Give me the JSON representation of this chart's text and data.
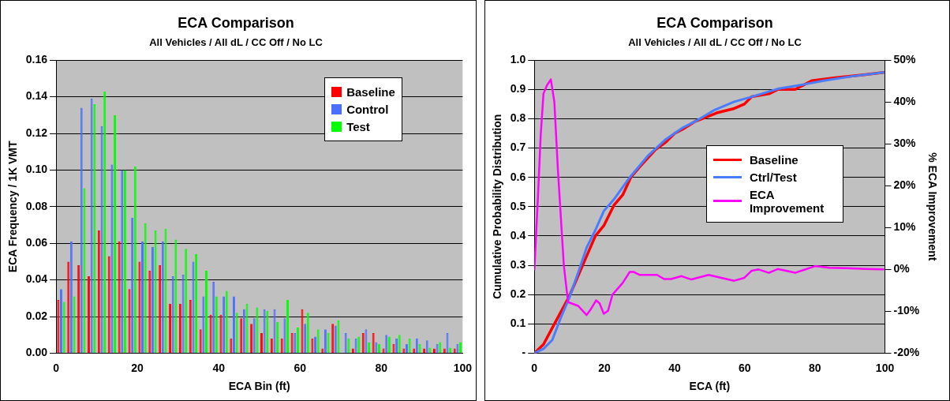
{
  "chart_data": [
    {
      "type": "bar",
      "title": "ECA Comparison",
      "subtitle": "All Vehicles / All dL / CC Off / No LC",
      "xlabel": "ECA Bin (ft)",
      "ylabel": "ECA Frequency / 1K VMT",
      "x": [
        1.25,
        3.75,
        6.25,
        8.75,
        11.25,
        13.75,
        16.25,
        18.75,
        21.25,
        23.75,
        26.25,
        28.75,
        31.25,
        33.75,
        36.25,
        38.75,
        41.25,
        43.75,
        46.25,
        48.75,
        51.25,
        53.75,
        56.25,
        58.75,
        61.25,
        63.75,
        66.25,
        68.75,
        71.25,
        73.75,
        76.25,
        78.75,
        81.25,
        83.75,
        86.25,
        88.75,
        91.25,
        93.75,
        96.25,
        98.75
      ],
      "series": [
        {
          "name": "Baseline",
          "color": "#ff0000",
          "values": [
            0.029,
            0.05,
            0.048,
            0.042,
            0.067,
            0.053,
            0.061,
            0.035,
            0.05,
            0.045,
            0.048,
            0.027,
            0.027,
            0.029,
            0.013,
            0.021,
            0.021,
            0.008,
            0.019,
            0.016,
            0.011,
            0.008,
            0.008,
            0.011,
            0.024,
            0.008,
            0.0025,
            0.016,
            0,
            0.0025,
            0.011,
            0.011,
            0.0025,
            0.005,
            0.0025,
            0.0025,
            0.0025,
            0.0025,
            0.0025,
            0.0025
          ]
        },
        {
          "name": "Control",
          "color": "#4a6fff",
          "values": [
            0.035,
            0.061,
            0.134,
            0.139,
            0.124,
            0.103,
            0.1,
            0.074,
            0.061,
            0.058,
            0.061,
            0.042,
            0.043,
            0.05,
            0.031,
            0.039,
            0.031,
            0.031,
            0.024,
            0.019,
            0.024,
            0.024,
            0.019,
            0.011,
            0.016,
            0.009,
            0.013,
            0.015,
            0.011,
            0.008,
            0.013,
            0.006,
            0.01,
            0.008,
            0.005,
            0.008,
            0.007,
            0.005,
            0.011,
            0.005
          ]
        },
        {
          "name": "Test",
          "color": "#00ff00",
          "values": [
            0.028,
            0.031,
            0.09,
            0.136,
            0.143,
            0.13,
            0.1,
            0.102,
            0.071,
            0.067,
            0.068,
            0.062,
            0.057,
            0.054,
            0.045,
            0.031,
            0.034,
            0.022,
            0.027,
            0.025,
            0.023,
            0.017,
            0.029,
            0.014,
            0.022,
            0.013,
            0.011,
            0.018,
            0.008,
            0.009,
            0.006,
            0.005,
            0.009,
            0.01,
            0.008,
            0.005,
            0.003,
            0.006,
            0.003,
            0.006
          ]
        }
      ],
      "xlim": [
        0,
        100
      ],
      "xticks": [
        0,
        20,
        40,
        60,
        80,
        100
      ],
      "ylim": [
        0,
        0.16
      ],
      "yticks": [
        {
          "value": 0,
          "label": "0.00"
        },
        0.02,
        0.04,
        0.06,
        0.08,
        {
          "value": 0.1,
          "label": "0.10"
        },
        0.12,
        0.14,
        0.16
      ],
      "grid": "y",
      "legend": "top right"
    },
    {
      "type": "line",
      "title": "ECA Comparison",
      "subtitle": "All Vehicles / All dL / CC Off / No LC",
      "xlabel": "ECA (ft)",
      "ylabel": "Cumulative Probability Distribution",
      "y2label": "% ECA Improvement",
      "series": [
        {
          "name": "Baseline",
          "color": "#ff0000",
          "x": [
            0,
            2.6,
            5.5,
            10,
            14.5,
            17.4,
            19.8,
            22.7,
            25.2,
            27.5,
            30,
            34.6,
            37.5,
            40,
            42.4,
            45.7,
            48.9,
            52,
            57,
            59.9,
            62,
            66.9,
            69.4,
            74.4,
            79.1,
            85.8,
            94,
            99.6
          ],
          "values": [
            0,
            0.03,
            0.095,
            0.195,
            0.32,
            0.4,
            0.435,
            0.505,
            0.54,
            0.6,
            0.635,
            0.695,
            0.72,
            0.75,
            0.765,
            0.79,
            0.805,
            0.82,
            0.835,
            0.85,
            0.875,
            0.885,
            0.9,
            0.9,
            0.93,
            0.94,
            0.95,
            0.958
          ]
        },
        {
          "name": "Ctrl/Test",
          "color": "#4a7cff",
          "x": [
            0,
            2.6,
            5.1,
            7.5,
            10,
            12.5,
            14.9,
            17.4,
            19.8,
            22.7,
            27.2,
            32.5,
            37.5,
            42.4,
            46.5,
            51.4,
            57,
            62,
            69.4,
            75.9,
            82.5,
            90.7,
            99.6
          ],
          "values": [
            0,
            0.015,
            0.045,
            0.12,
            0.19,
            0.275,
            0.36,
            0.42,
            0.485,
            0.525,
            0.6,
            0.675,
            0.73,
            0.77,
            0.795,
            0.83,
            0.858,
            0.875,
            0.902,
            0.915,
            0.93,
            0.945,
            0.958
          ]
        },
        {
          "name": "ECA Improvement",
          "color": "#ff00ff",
          "axis": "y2",
          "x": [
            0,
            1,
            1.8,
            2.6,
            3.6,
            4.7,
            5.7,
            6.7,
            8.4,
            9.6,
            12.5,
            14.9,
            16.1,
            17.6,
            18.6,
            19.8,
            21,
            22.3,
            25.2,
            27.2,
            28.4,
            30,
            35,
            37,
            39,
            42,
            44.8,
            49.7,
            57,
            59.9,
            62,
            64,
            66.9,
            69.4,
            74.4,
            80.1,
            84.2,
            89,
            94.8,
            99.6
          ],
          "values": [
            0,
            17,
            32,
            42,
            44,
            45.4,
            40,
            24,
            1,
            -7.8,
            -8.7,
            -10.9,
            -9.5,
            -7.4,
            -8.1,
            -10.6,
            -9.9,
            -6,
            -3.2,
            -0.6,
            -0.6,
            -1.3,
            -1.3,
            -2.3,
            -2.3,
            -1.6,
            -2.4,
            -1.3,
            -2.7,
            -2,
            -0.3,
            0,
            -0.8,
            0.1,
            -0.8,
            0.8,
            0.4,
            0.3,
            0.1,
            0
          ]
        }
      ],
      "xlim": [
        0,
        100
      ],
      "xticks": [
        0,
        20,
        40,
        60,
        80,
        100
      ],
      "ylim": [
        0,
        1
      ],
      "yticks": [
        {
          "value": 0,
          "label": "-"
        },
        0.1,
        0.2,
        0.3,
        0.4,
        0.5,
        0.6,
        0.7,
        0.8,
        0.9,
        {
          "value": 1,
          "label": "1.0"
        }
      ],
      "y2lim": [
        -20,
        50
      ],
      "y2ticks": [
        {
          "value": -20,
          "label": "-20%"
        },
        {
          "value": -10,
          "label": "-10%"
        },
        {
          "value": 0,
          "label": "0%"
        },
        {
          "value": 10,
          "label": "10%"
        },
        {
          "value": 20,
          "label": "20%"
        },
        {
          "value": 30,
          "label": "30%"
        },
        {
          "value": 40,
          "label": "40%"
        },
        {
          "value": 50,
          "label": "50%"
        }
      ],
      "grid": "y",
      "legend": "right",
      "marker": "none"
    }
  ]
}
